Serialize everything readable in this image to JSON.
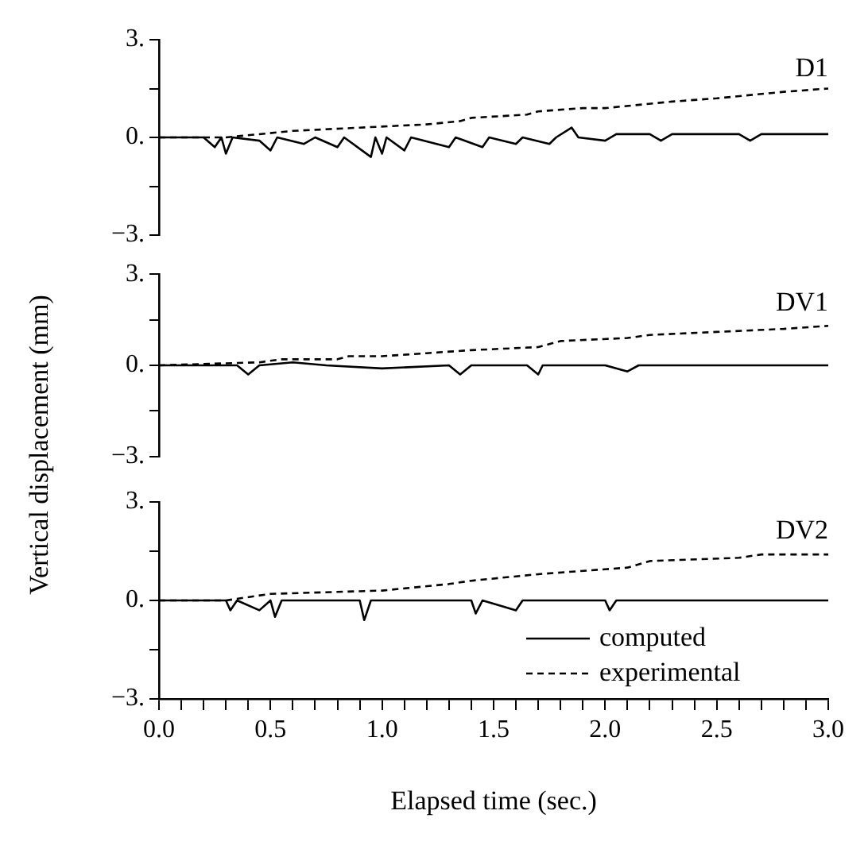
{
  "chart_data": [
    {
      "type": "line",
      "title": "D1",
      "xlim": [
        0,
        3
      ],
      "ylim": [
        -3,
        3
      ],
      "yticks": [
        {
          "value": 3,
          "label": "3."
        },
        {
          "value": 1.5,
          "label": null
        },
        {
          "value": 0,
          "label": "0."
        },
        {
          "value": -1.5,
          "label": null
        },
        {
          "value": -3,
          "label": "−3."
        }
      ],
      "tick_labels": "y",
      "grid": false,
      "legend": false,
      "marker": "none",
      "series": [
        {
          "color": "#000000",
          "line_style": "solid",
          "x": [
            0,
            0.2,
            0.25,
            0.28,
            0.3,
            0.33,
            0.45,
            0.5,
            0.53,
            0.65,
            0.7,
            0.8,
            0.83,
            0.95,
            0.97,
            1.0,
            1.02,
            1.1,
            1.13,
            1.3,
            1.33,
            1.45,
            1.48,
            1.6,
            1.63,
            1.75,
            1.78,
            1.85,
            1.88,
            2.0,
            2.05,
            2.2,
            2.25,
            2.3,
            2.6,
            2.65,
            2.7,
            3.0
          ],
          "values": [
            0,
            0,
            -0.3,
            0,
            -0.5,
            0,
            -0.1,
            -0.4,
            0,
            -0.2,
            0,
            -0.3,
            0,
            -0.6,
            0,
            -0.5,
            0,
            -0.4,
            0,
            -0.3,
            0,
            -0.3,
            0,
            -0.2,
            0,
            -0.2,
            0,
            0.3,
            0,
            -0.1,
            0.1,
            0.1,
            -0.1,
            0.1,
            0.1,
            -0.1,
            0.1,
            0.1
          ]
        },
        {
          "color": "#000000",
          "line_style": "dashed",
          "x": [
            0,
            0.3,
            0.6,
            0.9,
            1.2,
            1.35,
            1.4,
            1.65,
            1.7,
            1.9,
            2.0,
            2.3,
            2.5,
            2.8,
            3.0
          ],
          "values": [
            0,
            0,
            0.2,
            0.3,
            0.4,
            0.5,
            0.6,
            0.7,
            0.8,
            0.9,
            0.9,
            1.1,
            1.2,
            1.4,
            1.5
          ]
        }
      ]
    },
    {
      "type": "line",
      "title": "DV1",
      "ylabel": "Vertical displacement (mm)",
      "xlim": [
        0,
        3
      ],
      "ylim": [
        -3,
        3
      ],
      "yticks": [
        {
          "value": 3,
          "label": "3."
        },
        {
          "value": 1.5,
          "label": null
        },
        {
          "value": 0,
          "label": "0."
        },
        {
          "value": -1.5,
          "label": null
        },
        {
          "value": -3,
          "label": "−3."
        }
      ],
      "tick_labels": "y",
      "grid": false,
      "legend": false,
      "marker": "none",
      "series": [
        {
          "color": "#000000",
          "line_style": "solid",
          "x": [
            0,
            0.35,
            0.4,
            0.45,
            0.6,
            0.75,
            1.0,
            1.3,
            1.35,
            1.4,
            1.65,
            1.7,
            1.72,
            2.0,
            2.1,
            2.15,
            2.6,
            3.0
          ],
          "values": [
            0,
            0,
            -0.3,
            0,
            0.1,
            0,
            -0.1,
            0,
            -0.3,
            0,
            0,
            -0.3,
            0,
            0,
            -0.2,
            0,
            0,
            0
          ]
        },
        {
          "color": "#000000",
          "line_style": "dashed",
          "x": [
            0,
            0.45,
            0.55,
            0.8,
            0.85,
            1.0,
            1.2,
            1.4,
            1.7,
            1.8,
            2.1,
            2.2,
            2.5,
            2.8,
            3.0
          ],
          "values": [
            0,
            0.1,
            0.2,
            0.2,
            0.3,
            0.3,
            0.4,
            0.5,
            0.6,
            0.8,
            0.9,
            1.0,
            1.1,
            1.2,
            1.3
          ]
        }
      ]
    },
    {
      "type": "line",
      "title": "DV2",
      "xlabel": "Elapsed time (sec.)",
      "xlim": [
        0,
        3
      ],
      "xticks": [
        {
          "value": 0,
          "label": "0.0"
        },
        {
          "value": 0.1,
          "label": null
        },
        {
          "value": 0.2,
          "label": null
        },
        {
          "value": 0.3,
          "label": null
        },
        {
          "value": 0.4,
          "label": null
        },
        {
          "value": 0.5,
          "label": "0.5"
        },
        {
          "value": 0.6,
          "label": null
        },
        {
          "value": 0.7,
          "label": null
        },
        {
          "value": 0.8,
          "label": null
        },
        {
          "value": 0.9,
          "label": null
        },
        {
          "value": 1,
          "label": "1.0"
        },
        {
          "value": 1.1,
          "label": null
        },
        {
          "value": 1.2,
          "label": null
        },
        {
          "value": 1.3,
          "label": null
        },
        {
          "value": 1.4,
          "label": null
        },
        {
          "value": 1.5,
          "label": "1.5"
        },
        {
          "value": 1.6,
          "label": null
        },
        {
          "value": 1.7,
          "label": null
        },
        {
          "value": 1.8,
          "label": null
        },
        {
          "value": 1.9,
          "label": null
        },
        {
          "value": 2,
          "label": "2.0"
        },
        {
          "value": 2.1,
          "label": null
        },
        {
          "value": 2.2,
          "label": null
        },
        {
          "value": 2.3,
          "label": null
        },
        {
          "value": 2.4,
          "label": null
        },
        {
          "value": 2.5,
          "label": "2.5"
        },
        {
          "value": 2.6,
          "label": null
        },
        {
          "value": 2.7,
          "label": null
        },
        {
          "value": 2.8,
          "label": null
        },
        {
          "value": 2.9,
          "label": null
        },
        {
          "value": 3,
          "label": "3.0"
        }
      ],
      "ylim": [
        -3,
        3
      ],
      "yticks": [
        {
          "value": 3,
          "label": "3."
        },
        {
          "value": 1.5,
          "label": null
        },
        {
          "value": 0,
          "label": "0."
        },
        {
          "value": -1.5,
          "label": null
        },
        {
          "value": -3,
          "label": "−3."
        }
      ],
      "grid": false,
      "legend": "bottom right",
      "marker": "none",
      "series": [
        {
          "name": "computed",
          "color": "#000000",
          "line_style": "solid",
          "x": [
            0,
            0.3,
            0.32,
            0.35,
            0.45,
            0.5,
            0.52,
            0.55,
            0.9,
            0.92,
            0.95,
            1.4,
            1.42,
            1.45,
            1.6,
            1.63,
            2.0,
            2.02,
            2.05,
            2.5,
            3.0
          ],
          "values": [
            0,
            0,
            -0.3,
            0,
            -0.3,
            0,
            -0.5,
            0,
            0,
            -0.6,
            0,
            0,
            -0.4,
            0,
            -0.3,
            0,
            0,
            -0.3,
            0,
            0,
            0
          ]
        },
        {
          "name": "experimental",
          "color": "#000000",
          "line_style": "dashed",
          "x": [
            0,
            0.3,
            0.5,
            1.0,
            1.3,
            1.4,
            1.7,
            2.1,
            2.2,
            2.6,
            2.7,
            3.0
          ],
          "values": [
            0,
            0,
            0.2,
            0.3,
            0.5,
            0.6,
            0.8,
            1.0,
            1.2,
            1.3,
            1.4,
            1.4
          ]
        }
      ]
    }
  ]
}
